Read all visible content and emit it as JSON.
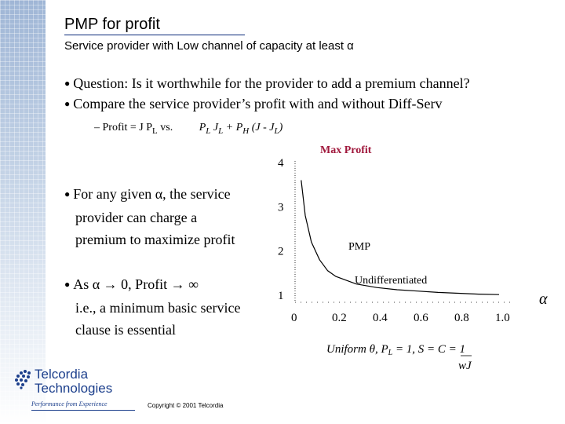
{
  "slide": {
    "title": "PMP for profit",
    "subtitle": "Service provider with Low channel of capacity at least α"
  },
  "bullets": {
    "question": "Question: Is it worthwhile for the provider to add a premium channel?",
    "compare": "Compare the service provider’s profit with and without Diff-Serv",
    "profit_prefix": "– Profit = J P",
    "profit_sub1": "L",
    "profit_vs": " vs. ",
    "profit_formula": {
      "p1": "P",
      "s1": "L",
      "p2": " J",
      "s2": "L",
      "p3": " + P",
      "s3": "H",
      "p4": " (J - J",
      "s4": "L",
      "p5": ")"
    },
    "given_line1": "For any given α, the service",
    "given_line2": "provider can charge a",
    "given_line3": "premium to maximize profit",
    "as_line1": "As α → 0,  Profit → ∞",
    "as_line2": "i.e., a minimum basic service",
    "as_line3": "clause is essential"
  },
  "chart_data": {
    "type": "line",
    "title": "Max Profit",
    "xlabel": "α",
    "x_ticks": [
      "0",
      "0.2",
      "0.4",
      "0.6",
      "0.8",
      "1.0"
    ],
    "y_ticks": [
      "1",
      "2",
      "3",
      "4"
    ],
    "xlim": [
      0,
      1.0
    ],
    "ylim": [
      0.8,
      4
    ],
    "series": [
      {
        "name": "PMP",
        "x": [
          0.03,
          0.05,
          0.08,
          0.12,
          0.16,
          0.2,
          0.3,
          0.4,
          0.5,
          0.6,
          0.7,
          0.8,
          0.9,
          1.0
        ],
        "y": [
          3.6,
          2.8,
          2.2,
          1.8,
          1.55,
          1.42,
          1.25,
          1.17,
          1.12,
          1.09,
          1.06,
          1.04,
          1.02,
          1.01
        ]
      },
      {
        "name": "Undifferentiated",
        "x": [
          0,
          1.0
        ],
        "y": [
          1.0,
          1.0
        ]
      }
    ],
    "footnote_line1": "Uniform θ, P",
    "footnote_sub": "L",
    "footnote_line1_rest": " = 1, S = C  = 1",
    "footnote_line2": "wJ"
  },
  "footer": {
    "copyright": "Copyright © 2001 Telcordia",
    "logo_line1": "Telcordia",
    "logo_line2": "Technologies",
    "logo_tagline": "Performance from Experience",
    "brand_color": "#1c3f8c"
  }
}
